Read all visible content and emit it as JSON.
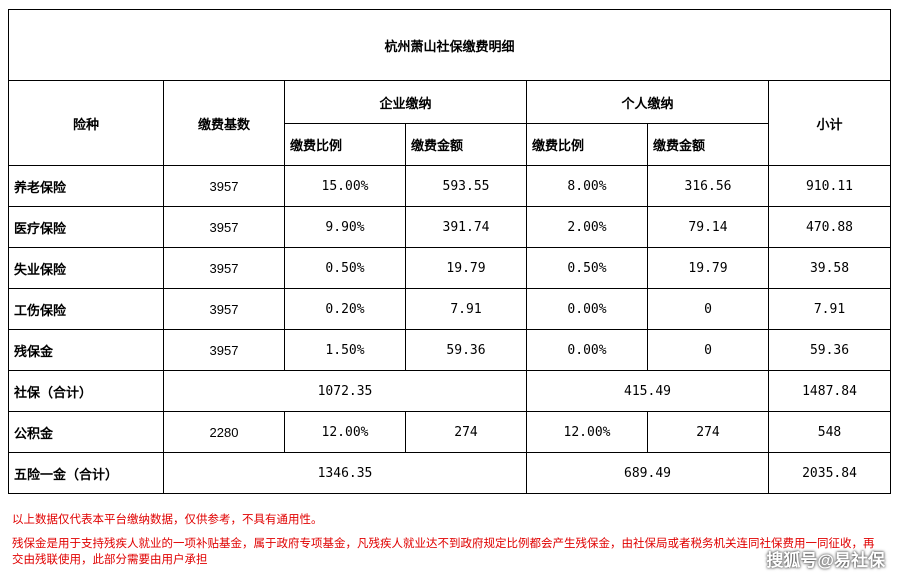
{
  "table": {
    "title": "杭州萧山社保缴费明细",
    "headers": {
      "insurance_type": "险种",
      "base": "缴费基数",
      "company": "企业缴纳",
      "personal": "个人缴纳",
      "subtotal": "小计",
      "rate": "缴费比例",
      "amount": "缴费金额"
    },
    "rows": [
      {
        "name": "养老保险",
        "base": "3957",
        "company_rate": "15.00%",
        "company_amount": "593.55",
        "personal_rate": "8.00%",
        "personal_amount": "316.56",
        "subtotal": "910.11"
      },
      {
        "name": "医疗保险",
        "base": "3957",
        "company_rate": "9.90%",
        "company_amount": "391.74",
        "personal_rate": "2.00%",
        "personal_amount": "79.14",
        "subtotal": "470.88"
      },
      {
        "name": "失业保险",
        "base": "3957",
        "company_rate": "0.50%",
        "company_amount": "19.79",
        "personal_rate": "0.50%",
        "personal_amount": "19.79",
        "subtotal": "39.58"
      },
      {
        "name": "工伤保险",
        "base": "3957",
        "company_rate": "0.20%",
        "company_amount": "7.91",
        "personal_rate": "0.00%",
        "personal_amount": "0",
        "subtotal": "7.91"
      },
      {
        "name": "残保金",
        "base": "3957",
        "company_rate": "1.50%",
        "company_amount": "59.36",
        "personal_rate": "0.00%",
        "personal_amount": "0",
        "subtotal": "59.36"
      }
    ],
    "social_total": {
      "name": "社保（合计）",
      "company": "1072.35",
      "personal": "415.49",
      "subtotal": "1487.84"
    },
    "housing_fund": {
      "name": "公积金",
      "base": "2280",
      "company_rate": "12.00%",
      "company_amount": "274",
      "personal_rate": "12.00%",
      "personal_amount": "274",
      "subtotal": "548"
    },
    "grand_total": {
      "name": "五险一金（合计）",
      "company": "1346.35",
      "personal": "689.49",
      "subtotal": "2035.84"
    }
  },
  "notes": {
    "line1": "以上数据仅代表本平台缴纳数据，仅供参考，不具有通用性。",
    "line2": "残保金是用于支持残疾人就业的一项补贴基金，属于政府专项基金，凡残疾人就业达不到政府规定比例都会产生残保金，由社保局或者税务机关连同社保费用一同征收，再交由残联使用，此部分需要由用户承担"
  },
  "watermark": "搜狐号@易社保",
  "colors": {
    "note_text": "#e00000",
    "border": "#000000"
  }
}
